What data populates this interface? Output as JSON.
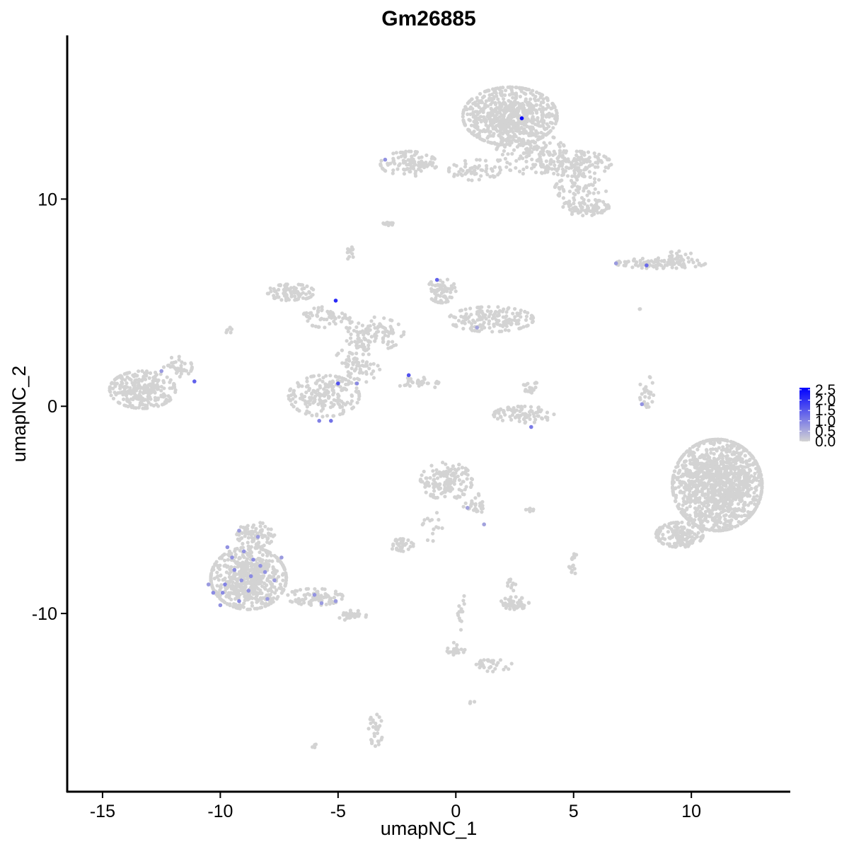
{
  "chart_data": {
    "type": "scatter",
    "title": "Gm26885",
    "xlabel": "umapNC_1",
    "ylabel": "umapNC_2",
    "xlim": [
      -16.5,
      14.2
    ],
    "ylim": [
      -18.6,
      17.9
    ],
    "xticks": [
      -15,
      -10,
      -5,
      0,
      5,
      10
    ],
    "xtick_labels": [
      "-15",
      "-10",
      "-5",
      "0",
      "5",
      "10"
    ],
    "yticks": [
      10,
      0,
      -10
    ],
    "ytick_labels": [
      "10",
      "0",
      "-10"
    ],
    "grid": false,
    "legend": {
      "type": "colorbar",
      "position": "right",
      "labels": [
        "2.5",
        "2.0",
        "1.5",
        "1.0",
        "0.5",
        "0.0"
      ],
      "range": [
        0,
        2.6
      ],
      "color_low": "#d3d3d3",
      "color_high": "#0000ff"
    },
    "background_point_color": "#d3d3d3",
    "clusters": [
      {
        "cx": 2.3,
        "cy": 14.0,
        "rx": 2.0,
        "ry": 1.4,
        "n": 700
      },
      {
        "cx": 3.2,
        "cy": 12.2,
        "rx": 1.5,
        "ry": 1.0,
        "n": 150
      },
      {
        "cx": 5.1,
        "cy": 11.7,
        "rx": 1.5,
        "ry": 0.6,
        "n": 140
      },
      {
        "cx": 5.3,
        "cy": 10.5,
        "rx": 1.1,
        "ry": 0.6,
        "n": 60
      },
      {
        "cx": 5.5,
        "cy": 9.6,
        "rx": 1.0,
        "ry": 0.4,
        "n": 80
      },
      {
        "cx": -2.0,
        "cy": 11.7,
        "rx": 1.2,
        "ry": 0.6,
        "n": 110
      },
      {
        "cx": 0.8,
        "cy": 11.4,
        "rx": 1.1,
        "ry": 0.5,
        "n": 60
      },
      {
        "cx": -2.8,
        "cy": 8.8,
        "rx": 0.3,
        "ry": 0.15,
        "n": 12
      },
      {
        "cx": -4.5,
        "cy": 7.4,
        "rx": 0.25,
        "ry": 0.3,
        "n": 14
      },
      {
        "cx": -7.0,
        "cy": 5.5,
        "rx": 1.0,
        "ry": 0.4,
        "n": 90
      },
      {
        "cx": -5.5,
        "cy": 4.3,
        "rx": 1.0,
        "ry": 0.5,
        "n": 60
      },
      {
        "cx": -3.5,
        "cy": 3.5,
        "rx": 1.3,
        "ry": 0.8,
        "n": 110
      },
      {
        "cx": -4.2,
        "cy": 2.0,
        "rx": 1.0,
        "ry": 0.9,
        "n": 80
      },
      {
        "cx": -5.6,
        "cy": 0.5,
        "rx": 1.5,
        "ry": 1.0,
        "n": 200
      },
      {
        "cx": -0.6,
        "cy": 5.6,
        "rx": 0.6,
        "ry": 0.6,
        "n": 70
      },
      {
        "cx": 1.5,
        "cy": 4.2,
        "rx": 1.8,
        "ry": 0.6,
        "n": 170
      },
      {
        "cx": -1.6,
        "cy": 1.1,
        "rx": 0.9,
        "ry": 0.3,
        "n": 30
      },
      {
        "cx": 2.9,
        "cy": -0.4,
        "rx": 1.3,
        "ry": 0.4,
        "n": 90
      },
      {
        "cx": 3.2,
        "cy": 0.8,
        "rx": 0.4,
        "ry": 0.4,
        "n": 20
      },
      {
        "cx": -13.3,
        "cy": 0.8,
        "rx": 1.4,
        "ry": 0.9,
        "n": 260
      },
      {
        "cx": -11.8,
        "cy": 1.9,
        "rx": 0.6,
        "ry": 0.5,
        "n": 40
      },
      {
        "cx": 8.7,
        "cy": 6.9,
        "rx": 1.9,
        "ry": 0.25,
        "n": 90
      },
      {
        "cx": 9.5,
        "cy": 7.2,
        "rx": 0.6,
        "ry": 0.3,
        "n": 30
      },
      {
        "cx": 8.1,
        "cy": 0.7,
        "rx": 0.3,
        "ry": 0.8,
        "n": 25
      },
      {
        "cx": 11.1,
        "cy": -3.8,
        "rx": 1.9,
        "ry": 2.2,
        "n": 1300
      },
      {
        "cx": 9.5,
        "cy": -6.2,
        "rx": 1.0,
        "ry": 0.6,
        "n": 150
      },
      {
        "cx": -0.4,
        "cy": -3.6,
        "rx": 1.1,
        "ry": 0.9,
        "n": 160
      },
      {
        "cx": 0.8,
        "cy": -4.7,
        "rx": 0.5,
        "ry": 0.5,
        "n": 30
      },
      {
        "cx": -2.3,
        "cy": -6.7,
        "rx": 0.5,
        "ry": 0.3,
        "n": 40
      },
      {
        "cx": -1.0,
        "cy": -5.8,
        "rx": 0.6,
        "ry": 0.7,
        "n": 15
      },
      {
        "cx": -8.8,
        "cy": -8.3,
        "rx": 1.6,
        "ry": 1.5,
        "n": 600
      },
      {
        "cx": -8.5,
        "cy": -6.2,
        "rx": 0.8,
        "ry": 0.6,
        "n": 80
      },
      {
        "cx": -6.0,
        "cy": -9.2,
        "rx": 1.2,
        "ry": 0.4,
        "n": 80
      },
      {
        "cx": -4.4,
        "cy": -10.1,
        "rx": 0.6,
        "ry": 0.25,
        "n": 35
      },
      {
        "cx": 2.5,
        "cy": -9.5,
        "rx": 0.6,
        "ry": 0.3,
        "n": 50
      },
      {
        "cx": 2.4,
        "cy": -8.6,
        "rx": 0.2,
        "ry": 0.3,
        "n": 10
      },
      {
        "cx": 5.0,
        "cy": -7.7,
        "rx": 0.2,
        "ry": 0.4,
        "n": 10
      },
      {
        "cx": 0.2,
        "cy": -9.8,
        "rx": 0.2,
        "ry": 1.0,
        "n": 15
      },
      {
        "cx": 0.0,
        "cy": -11.7,
        "rx": 0.4,
        "ry": 0.3,
        "n": 20
      },
      {
        "cx": 1.6,
        "cy": -12.5,
        "rx": 0.8,
        "ry": 0.3,
        "n": 30
      },
      {
        "cx": -3.4,
        "cy": -15.6,
        "rx": 0.3,
        "ry": 0.8,
        "n": 30
      },
      {
        "cx": -6.0,
        "cy": -16.4,
        "rx": 0.1,
        "ry": 0.1,
        "n": 4
      },
      {
        "cx": 0.7,
        "cy": -14.3,
        "rx": 0.1,
        "ry": 0.1,
        "n": 4
      },
      {
        "cx": 3.0,
        "cy": -5.0,
        "rx": 0.3,
        "ry": 0.1,
        "n": 6
      },
      {
        "cx": 5.0,
        "cy": -7.3,
        "rx": 0.2,
        "ry": 0.2,
        "n": 6
      },
      {
        "cx": 7.8,
        "cy": 4.7,
        "rx": 0.1,
        "ry": 0.1,
        "n": 2
      },
      {
        "cx": -9.6,
        "cy": 3.7,
        "rx": 0.2,
        "ry": 0.2,
        "n": 6
      }
    ],
    "expressing_cells": [
      {
        "x": 2.8,
        "y": 13.9,
        "v": 2.5
      },
      {
        "x": -5.1,
        "y": 5.1,
        "v": 2.1
      },
      {
        "x": -0.8,
        "y": 6.1,
        "v": 1.4
      },
      {
        "x": 0.9,
        "y": 3.8,
        "v": 0.6
      },
      {
        "x": -2.0,
        "y": 1.5,
        "v": 1.6
      },
      {
        "x": -5.0,
        "y": 1.1,
        "v": 1.6
      },
      {
        "x": -4.2,
        "y": 1.1,
        "v": 0.9
      },
      {
        "x": -11.1,
        "y": 1.2,
        "v": 1.4
      },
      {
        "x": -12.5,
        "y": 1.7,
        "v": 0.7
      },
      {
        "x": -5.8,
        "y": -0.7,
        "v": 1.0
      },
      {
        "x": -5.3,
        "y": -0.7,
        "v": 1.2
      },
      {
        "x": -3.0,
        "y": 11.9,
        "v": 0.8
      },
      {
        "x": 8.1,
        "y": 6.8,
        "v": 1.3
      },
      {
        "x": 6.8,
        "y": 6.9,
        "v": 0.7
      },
      {
        "x": 3.2,
        "y": -1.0,
        "v": 1.1
      },
      {
        "x": 7.9,
        "y": 0.1,
        "v": 0.8
      },
      {
        "x": 1.2,
        "y": -5.7,
        "v": 0.6
      },
      {
        "x": 0.5,
        "y": -4.9,
        "v": 0.6
      },
      {
        "x": -9.0,
        "y": -7.0,
        "v": 0.8
      },
      {
        "x": -8.6,
        "y": -7.4,
        "v": 0.9
      },
      {
        "x": -9.4,
        "y": -7.9,
        "v": 0.9
      },
      {
        "x": -8.1,
        "y": -8.0,
        "v": 0.8
      },
      {
        "x": -9.8,
        "y": -8.6,
        "v": 1.0
      },
      {
        "x": -10.3,
        "y": -9.0,
        "v": 0.9
      },
      {
        "x": -8.8,
        "y": -8.9,
        "v": 0.8
      },
      {
        "x": -9.2,
        "y": -9.4,
        "v": 0.9
      },
      {
        "x": -7.7,
        "y": -8.4,
        "v": 0.7
      },
      {
        "x": -10.0,
        "y": -9.6,
        "v": 0.8
      },
      {
        "x": -8.4,
        "y": -6.3,
        "v": 0.7
      },
      {
        "x": -9.7,
        "y": -6.8,
        "v": 0.8
      },
      {
        "x": -6.0,
        "y": -9.1,
        "v": 0.8
      },
      {
        "x": -5.7,
        "y": -9.5,
        "v": 0.7
      },
      {
        "x": -5.1,
        "y": -9.4,
        "v": 0.7
      },
      {
        "x": -9.2,
        "y": -6.0,
        "v": 0.7
      },
      {
        "x": -10.5,
        "y": -8.6,
        "v": 0.7
      },
      {
        "x": -8.0,
        "y": -9.3,
        "v": 0.7
      },
      {
        "x": -9.5,
        "y": -7.3,
        "v": 0.8
      },
      {
        "x": -8.3,
        "y": -7.7,
        "v": 0.8
      },
      {
        "x": -7.4,
        "y": -7.3,
        "v": 0.7
      },
      {
        "x": -9.9,
        "y": -9.0,
        "v": 0.9
      },
      {
        "x": -8.7,
        "y": -8.2,
        "v": 0.9
      },
      {
        "x": -9.1,
        "y": -8.4,
        "v": 0.8
      }
    ]
  }
}
